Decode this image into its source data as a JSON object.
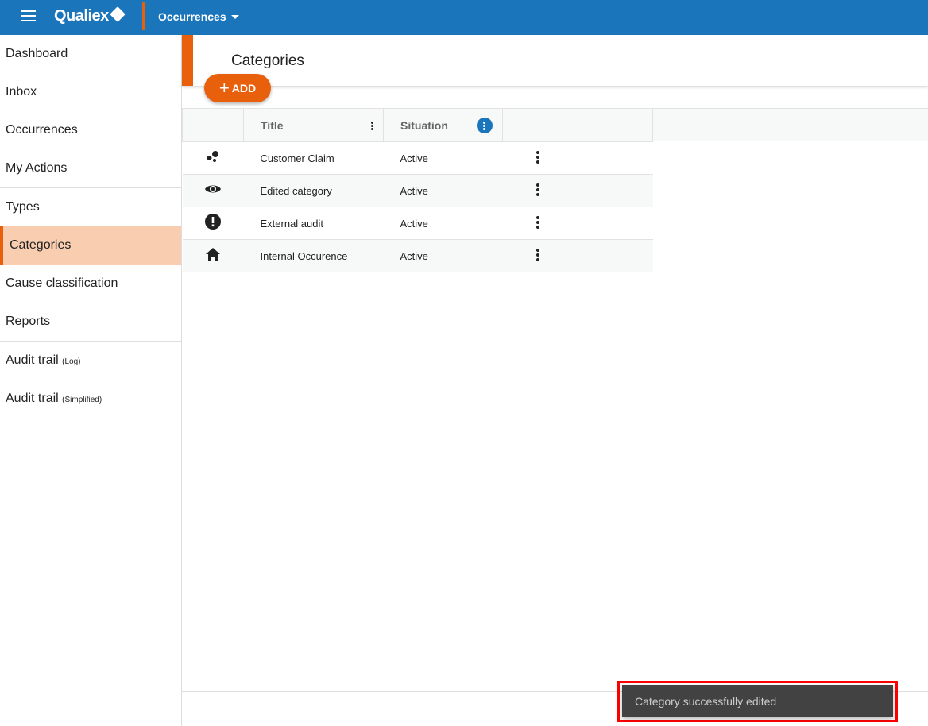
{
  "topbar": {
    "brand": "Qualiex",
    "module": "Occurrences"
  },
  "sidebar": {
    "items": [
      {
        "label": "Dashboard"
      },
      {
        "label": "Inbox"
      },
      {
        "label": "Occurrences"
      },
      {
        "label": "My Actions"
      },
      {
        "label": "Types"
      },
      {
        "label": "Categories",
        "active": true
      },
      {
        "label": "Cause classification"
      },
      {
        "label": "Reports"
      },
      {
        "label": "Audit trail",
        "suffix": "(Log)"
      },
      {
        "label": "Audit trail",
        "suffix": "(Simplified)"
      }
    ]
  },
  "page": {
    "title": "Categories",
    "add_label": "ADD"
  },
  "table": {
    "columns": [
      "",
      "Title",
      "Situation",
      ""
    ],
    "rows": [
      {
        "icon": "bubbles-icon",
        "title": "Customer Claim",
        "situation": "Active"
      },
      {
        "icon": "eye-icon",
        "title": "Edited category",
        "situation": "Active"
      },
      {
        "icon": "alert-circle-icon",
        "title": "External audit",
        "situation": "Active"
      },
      {
        "icon": "home-icon",
        "title": "Internal Occurence",
        "situation": "Active"
      }
    ]
  },
  "toast": {
    "message": "Category successfully edited"
  },
  "colors": {
    "primary": "#1b75bb",
    "accent": "#e8600c",
    "active_bg": "#f8cdb0"
  }
}
